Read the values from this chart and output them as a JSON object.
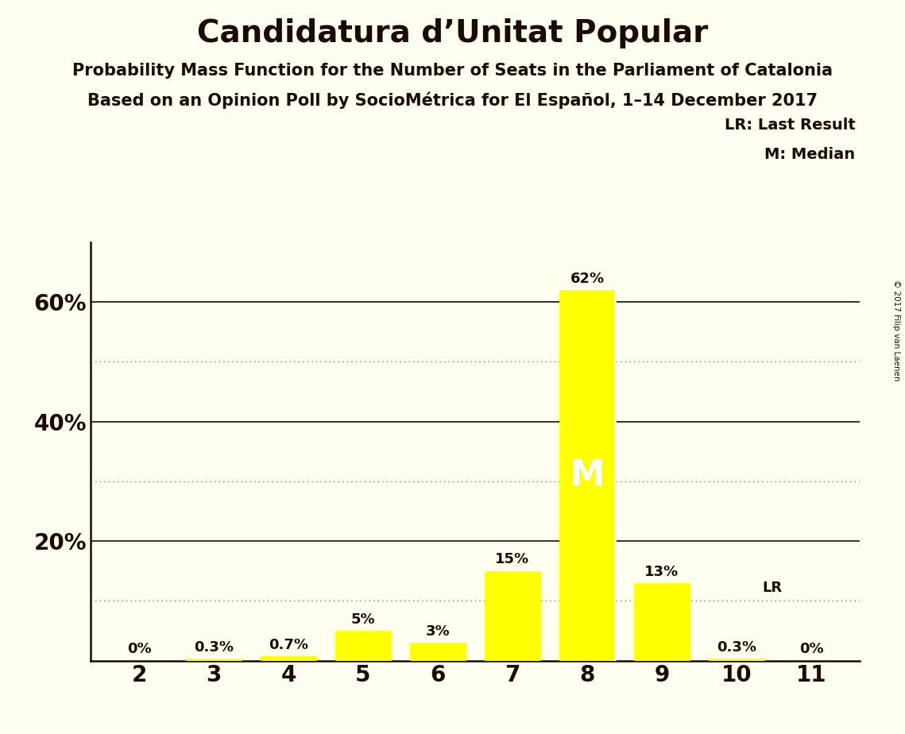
{
  "title": "Candidatura d’Unitat Popular",
  "subtitle1": "Probability Mass Function for the Number of Seats in the Parliament of Catalonia",
  "subtitle2": "Based on an Opinion Poll by SocioMétrica for El Español, 1–14 December 2017",
  "watermark": "© 2017 Filip van Laenen",
  "categories": [
    2,
    3,
    4,
    5,
    6,
    7,
    8,
    9,
    10,
    11
  ],
  "values": [
    0.0,
    0.3,
    0.7,
    5.0,
    3.0,
    15.0,
    62.0,
    13.0,
    0.3,
    0.0
  ],
  "bar_color": "#ffff00",
  "bar_edge_color": "#ffff00",
  "background_color": "#fffff0",
  "text_color": "#1a0a00",
  "ylim": [
    0,
    70
  ],
  "median_seat": 8,
  "last_result_seat": 10,
  "legend_lr": "LR: Last Result",
  "legend_m": "M: Median",
  "median_label": "M",
  "lr_label": "LR",
  "bar_labels": [
    "0%",
    "0.3%",
    "0.7%",
    "5%",
    "3%",
    "15%",
    "62%",
    "13%",
    "0.3%",
    "0%"
  ],
  "dotted_line_color": "#777777",
  "solid_line_color": "#1a0a00",
  "solid_line_yticks": [
    20,
    40,
    60
  ],
  "dotted_line_yticks": [
    10,
    30,
    50
  ]
}
